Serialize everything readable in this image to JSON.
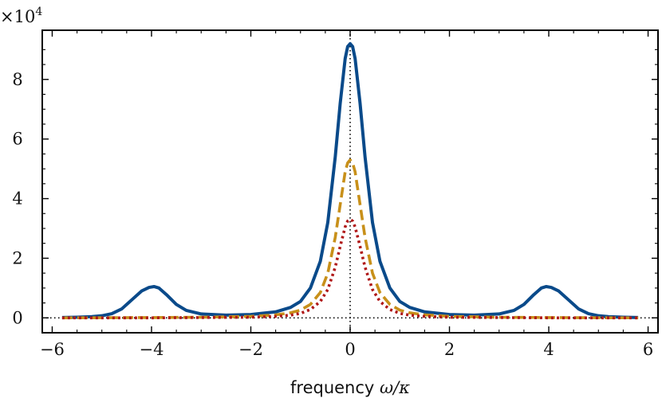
{
  "chart_data": {
    "type": "line",
    "xlabel_text": "frequency",
    "xlabel_math": "ω/κ",
    "ylabel": "",
    "y_scale_text": "×10",
    "y_scale_exponent": "4",
    "xlim": [
      -6.2,
      6.2
    ],
    "ylim": [
      -0.5,
      9.65
    ],
    "x_ticks": [
      -6,
      -4,
      -2,
      0,
      2,
      4,
      6
    ],
    "x_tick_labels": [
      "−6",
      "−4",
      "−2",
      "0",
      "2",
      "4",
      "6"
    ],
    "y_ticks": [
      0,
      2,
      4,
      6,
      8
    ],
    "y_tick_labels": [
      "0",
      "2",
      "4",
      "6",
      "8"
    ],
    "grid": false,
    "reference_lines": {
      "x": 0,
      "y": 0,
      "style": "dotted",
      "color": "#000000"
    },
    "series": [
      {
        "style": "solid",
        "color": "#0a4a8a",
        "x": [
          -5.8,
          -5.5,
          -5.2,
          -5.0,
          -4.8,
          -4.6,
          -4.4,
          -4.2,
          -4.05,
          -3.95,
          -3.85,
          -3.7,
          -3.5,
          -3.3,
          -3.0,
          -2.5,
          -2.0,
          -1.5,
          -1.2,
          -1.0,
          -0.8,
          -0.6,
          -0.45,
          -0.3,
          -0.2,
          -0.1,
          -0.05,
          0.0,
          0.05,
          0.1,
          0.2,
          0.3,
          0.45,
          0.6,
          0.8,
          1.0,
          1.2,
          1.5,
          2.0,
          2.5,
          3.0,
          3.3,
          3.5,
          3.7,
          3.85,
          3.95,
          4.05,
          4.2,
          4.4,
          4.6,
          4.8,
          5.0,
          5.2,
          5.5,
          5.8
        ],
        "y": [
          0.01,
          0.02,
          0.04,
          0.07,
          0.14,
          0.3,
          0.6,
          0.9,
          1.02,
          1.05,
          1.0,
          0.78,
          0.45,
          0.25,
          0.13,
          0.09,
          0.11,
          0.2,
          0.35,
          0.55,
          1.0,
          1.9,
          3.2,
          5.4,
          7.2,
          8.7,
          9.1,
          9.2,
          9.1,
          8.7,
          7.2,
          5.4,
          3.2,
          1.9,
          1.0,
          0.55,
          0.35,
          0.2,
          0.11,
          0.09,
          0.13,
          0.25,
          0.45,
          0.78,
          1.0,
          1.05,
          1.02,
          0.9,
          0.6,
          0.3,
          0.14,
          0.07,
          0.04,
          0.02,
          0.01
        ]
      },
      {
        "style": "dashed",
        "color": "#c8901a",
        "x": [
          -5.8,
          -4.0,
          -3.0,
          -2.0,
          -1.5,
          -1.2,
          -1.0,
          -0.8,
          -0.6,
          -0.45,
          -0.3,
          -0.2,
          -0.1,
          -0.05,
          0.0,
          0.05,
          0.1,
          0.2,
          0.3,
          0.45,
          0.6,
          0.8,
          1.0,
          1.2,
          1.5,
          2.0,
          3.0,
          4.0,
          5.8
        ],
        "y": [
          0.0,
          0.01,
          0.02,
          0.05,
          0.1,
          0.17,
          0.26,
          0.45,
          0.85,
          1.5,
          2.7,
          3.8,
          4.9,
          5.2,
          5.3,
          5.2,
          4.9,
          3.8,
          2.7,
          1.5,
          0.85,
          0.45,
          0.26,
          0.17,
          0.1,
          0.05,
          0.02,
          0.01,
          0.0
        ]
      },
      {
        "style": "dotted",
        "color": "#b01818",
        "x": [
          -5.8,
          -4.0,
          -3.0,
          -2.0,
          -1.5,
          -1.2,
          -1.0,
          -0.8,
          -0.6,
          -0.45,
          -0.3,
          -0.2,
          -0.1,
          -0.05,
          0.0,
          0.05,
          0.1,
          0.2,
          0.3,
          0.45,
          0.6,
          0.8,
          1.0,
          1.2,
          1.5,
          2.0,
          3.0,
          4.0,
          5.8
        ],
        "y": [
          0.0,
          0.0,
          0.01,
          0.02,
          0.05,
          0.09,
          0.15,
          0.28,
          0.55,
          0.95,
          1.7,
          2.4,
          3.05,
          3.25,
          3.3,
          3.25,
          3.05,
          2.4,
          1.7,
          0.95,
          0.55,
          0.28,
          0.15,
          0.09,
          0.05,
          0.02,
          0.01,
          0.0,
          0.0
        ]
      }
    ]
  }
}
